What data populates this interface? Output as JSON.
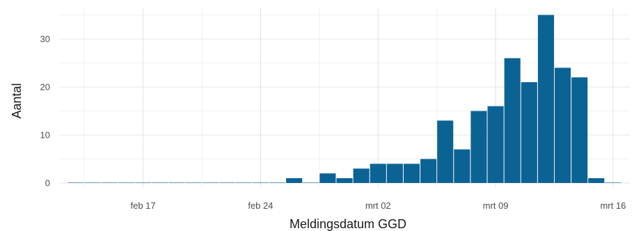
{
  "chart_data": {
    "type": "bar",
    "x_type": "date",
    "xlabel": "Meldingsdatum GGD",
    "ylabel": "Aantal",
    "ylim": [
      0,
      35
    ],
    "xlim": [
      "2020-02-12",
      "2020-03-17"
    ],
    "x_ticks": [
      {
        "date": "2020-02-17",
        "label": "feb 17"
      },
      {
        "date": "2020-02-24",
        "label": "feb 24"
      },
      {
        "date": "2020-03-02",
        "label": "mrt 02"
      },
      {
        "date": "2020-03-09",
        "label": "mrt 09"
      },
      {
        "date": "2020-03-16",
        "label": "mrt 16"
      }
    ],
    "y_ticks": [
      0,
      10,
      20,
      30
    ],
    "grid": true,
    "bar_color": "#0b6394",
    "dates": [
      "2020-02-13",
      "2020-02-14",
      "2020-02-15",
      "2020-02-16",
      "2020-02-17",
      "2020-02-18",
      "2020-02-19",
      "2020-02-20",
      "2020-02-21",
      "2020-02-22",
      "2020-02-23",
      "2020-02-24",
      "2020-02-25",
      "2020-02-26",
      "2020-02-27",
      "2020-02-28",
      "2020-02-29",
      "2020-03-01",
      "2020-03-02",
      "2020-03-03",
      "2020-03-04",
      "2020-03-05",
      "2020-03-06",
      "2020-03-07",
      "2020-03-08",
      "2020-03-09",
      "2020-03-10",
      "2020-03-11",
      "2020-03-12",
      "2020-03-13",
      "2020-03-14",
      "2020-03-15",
      "2020-03-16"
    ],
    "values": [
      0,
      0,
      0,
      0,
      0,
      0,
      0,
      0,
      0,
      0,
      0,
      0,
      0,
      1,
      0,
      2,
      1,
      3,
      4,
      4,
      4,
      5,
      13,
      7,
      15,
      16,
      26,
      21,
      35,
      24,
      22,
      1,
      0
    ]
  }
}
